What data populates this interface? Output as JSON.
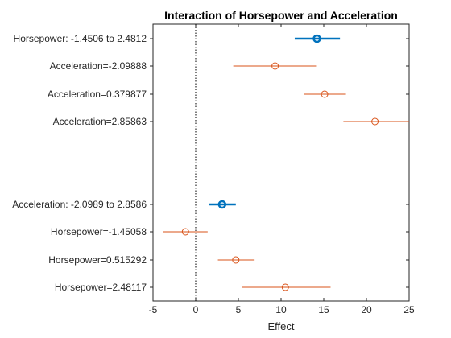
{
  "chart_data": {
    "type": "interaction-effects",
    "title": "Interaction of Horsepower and Acceleration",
    "xlabel": "Effect",
    "xlim": [
      -5,
      25
    ],
    "xticks": [
      "-5",
      "0",
      "5",
      "10",
      "15",
      "20",
      "25"
    ],
    "reference_line_x": 0,
    "colors": {
      "main_effect": "#0072BD",
      "conditional": "#D95319",
      "reference": "#000000"
    },
    "rows": [
      {
        "label": "Horsepower: -1.4506 to 2.4812",
        "kind": "main",
        "effect": 14.2,
        "ci": [
          11.6,
          16.9
        ]
      },
      {
        "label": "Acceleration=-2.09888",
        "kind": "conditional",
        "effect": 9.3,
        "ci": [
          4.4,
          14.1
        ]
      },
      {
        "label": "Acceleration=0.379877",
        "kind": "conditional",
        "effect": 15.1,
        "ci": [
          12.7,
          17.6
        ]
      },
      {
        "label": "Acceleration=2.85863",
        "kind": "conditional",
        "effect": 21.0,
        "ci": [
          17.3,
          25.0
        ]
      },
      {
        "label": "Acceleration: -2.0989 to 2.8586",
        "kind": "main",
        "effect": 3.1,
        "ci": [
          1.6,
          4.7
        ]
      },
      {
        "label": "Horsepower=-1.45058",
        "kind": "conditional",
        "effect": -1.2,
        "ci": [
          -3.8,
          1.4
        ]
      },
      {
        "label": "Horsepower=0.515292",
        "kind": "conditional",
        "effect": 4.7,
        "ci": [
          2.6,
          6.9
        ]
      },
      {
        "label": "Horsepower=2.48117",
        "kind": "conditional",
        "effect": 10.5,
        "ci": [
          5.4,
          15.8
        ]
      }
    ]
  }
}
